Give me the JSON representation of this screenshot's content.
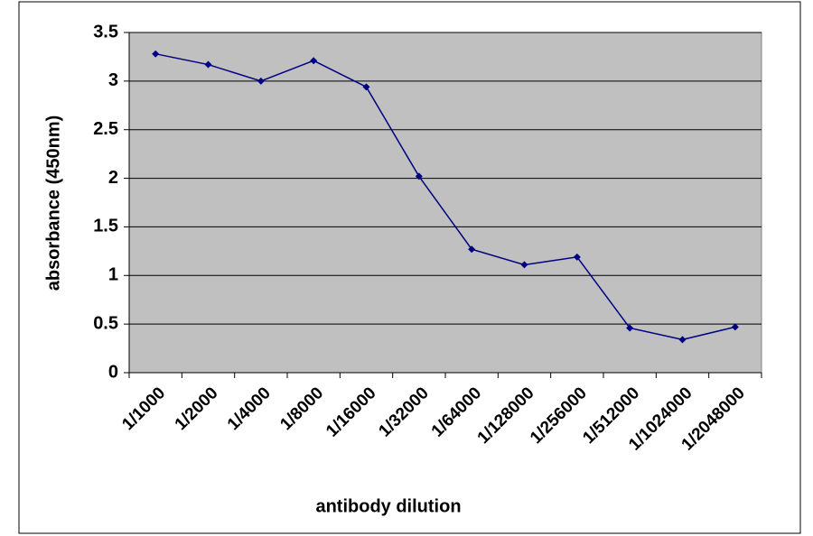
{
  "chart_data": {
    "type": "line",
    "x_label": "antibody dilution",
    "y_label": "absorbance (450nm)",
    "categories": [
      "1/1000",
      "1/2000",
      "1/4000",
      "1/8000",
      "1/16000",
      "1/32000",
      "1/64000",
      "1/128000",
      "1/256000",
      "1/512000",
      "1/1024000",
      "1/2048000"
    ],
    "series": [
      {
        "color": "#000080",
        "values": [
          3.28,
          3.17,
          3.0,
          3.21,
          2.94,
          2.02,
          1.27,
          1.11,
          1.19,
          0.46,
          0.34,
          0.47
        ]
      }
    ],
    "ylim": [
      0,
      3.5
    ],
    "yticks": [
      0,
      0.5,
      1,
      1.5,
      2,
      2.5,
      3,
      3.5
    ],
    "grid": true,
    "plot_background": "#c0c0c0"
  }
}
